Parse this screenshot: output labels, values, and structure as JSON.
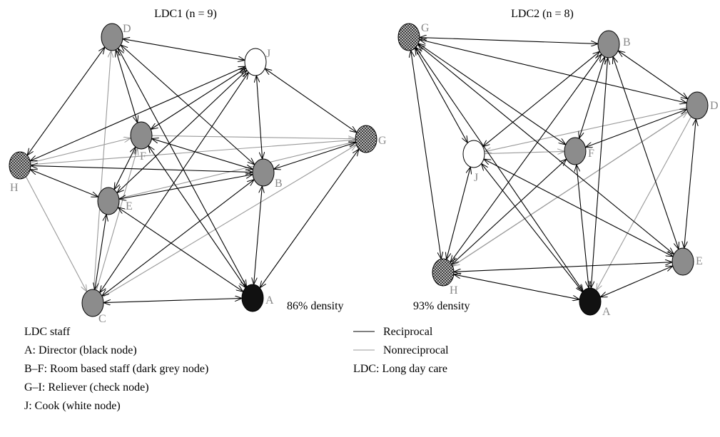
{
  "networks": [
    {
      "title": "LDC1 (n = 9)",
      "density": "86% density",
      "nodes": [
        {
          "label": "D"
        },
        {
          "label": "J"
        },
        {
          "label": "F"
        },
        {
          "label": "G"
        },
        {
          "label": "H"
        },
        {
          "label": "B"
        },
        {
          "label": "E"
        },
        {
          "label": "C"
        },
        {
          "label": "A"
        }
      ]
    },
    {
      "title": "LDC2 (n = 8)",
      "density": "93% density",
      "nodes": [
        {
          "label": "G"
        },
        {
          "label": "B"
        },
        {
          "label": "D"
        },
        {
          "label": "F"
        },
        {
          "label": "J"
        },
        {
          "label": "H"
        },
        {
          "label": "E"
        },
        {
          "label": "A"
        }
      ]
    }
  ],
  "legend": {
    "heading": "LDC staff",
    "items": [
      "A: Director (black node)",
      "B–F: Room based staff (dark grey node)",
      "G–I: Reliever (check node)",
      "J: Cook (white node)"
    ],
    "line_key": [
      "Reciprocal",
      "Nonreciprocal"
    ],
    "note": "LDC: Long day care"
  }
}
